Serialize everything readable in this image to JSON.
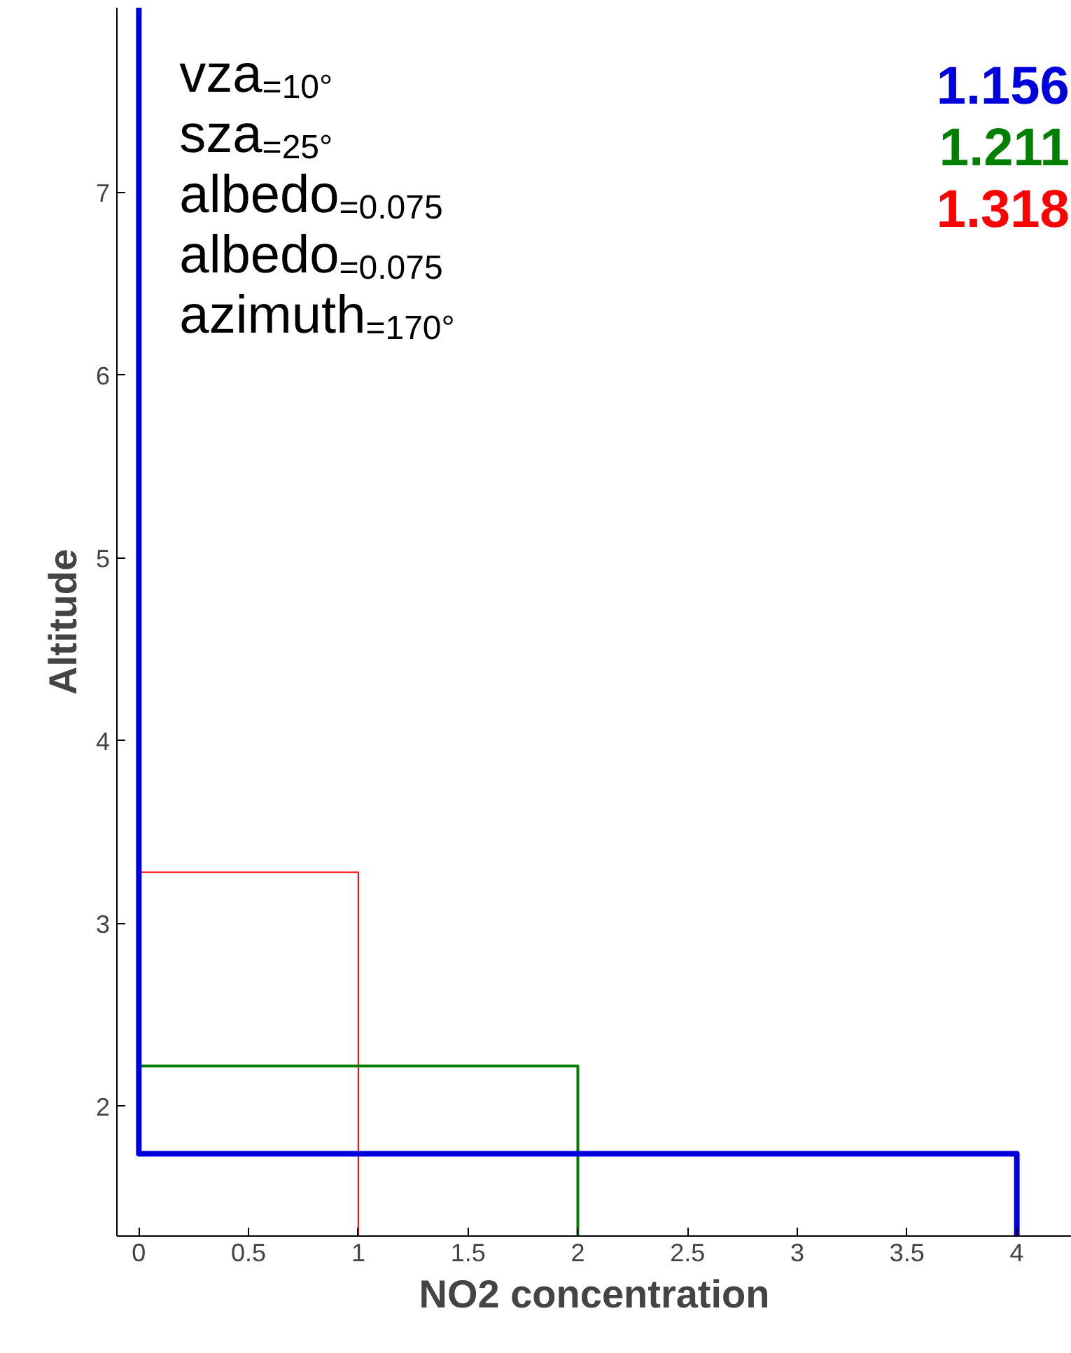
{
  "chart_data": {
    "type": "line",
    "xlabel": "NO2 concentration",
    "ylabel": "Altitude",
    "xlim": [
      -0.1,
      4.25
    ],
    "ylim": [
      1.29,
      8.01
    ],
    "xticks": [
      0,
      0.5,
      1,
      1.5,
      2,
      2.5,
      3,
      3.5,
      4
    ],
    "yticks": [
      2,
      3,
      4,
      5,
      6,
      7
    ],
    "grid": false,
    "legend": "top right",
    "marker": "none",
    "line_style": "solid",
    "series": [
      {
        "name": "1.318",
        "color": "#ff0000",
        "x": [
          1,
          1,
          0
        ],
        "values": [
          1.29,
          3.28,
          3.28
        ]
      },
      {
        "name": "1.211",
        "color": "#007f00",
        "x": [
          2,
          2,
          0
        ],
        "values": [
          1.29,
          2.22,
          2.22
        ]
      },
      {
        "name": "1.156",
        "color": "#0000dd",
        "x": [
          4,
          4,
          0,
          0
        ],
        "values": [
          1.29,
          1.74,
          1.74,
          8.01
        ]
      }
    ],
    "annotations": [
      "vza$_{=10°}$",
      "sza$_{=25°}$",
      "albedo$_{=0.075}$",
      "albedo$_{=0.075}$",
      "azimuth$_{=170°}$"
    ]
  }
}
